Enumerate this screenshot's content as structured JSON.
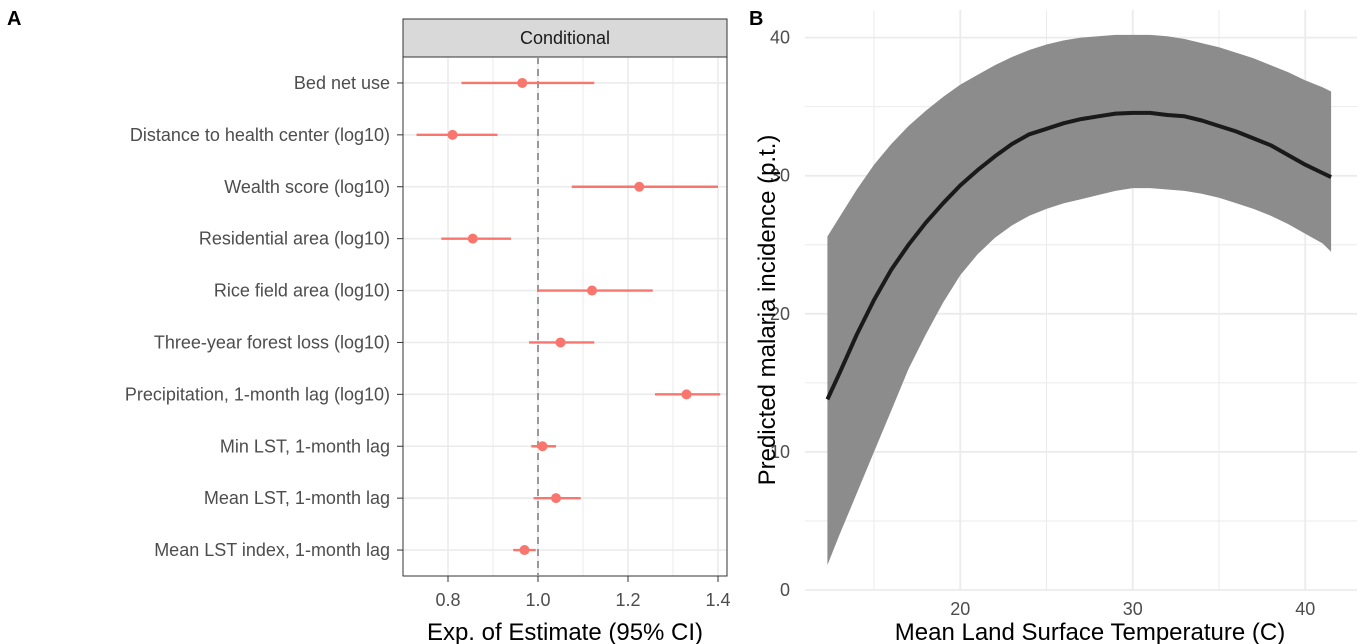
{
  "colors": {
    "point": "#f8766d",
    "ribbon": "#8c8c8c",
    "line": "#1a1a1a",
    "grid": "#ebebeb",
    "strip": "#d9d9d9",
    "refline": "#999999"
  },
  "chart_data": [
    {
      "panel": "A",
      "type": "scatter",
      "subtype": "forest-plot",
      "facet": "Conditional",
      "xlabel": "Exp. of Estimate (95% CI)",
      "ylabel": "",
      "xlim": [
        0.7,
        1.42
      ],
      "xticks": [
        0.8,
        1.0,
        1.2,
        1.4
      ],
      "xtick_labels": [
        "0.8",
        "1.0",
        "1.2",
        "1.4"
      ],
      "reference_line": 1.0,
      "grid": true,
      "rows": [
        {
          "label": "Bed net use",
          "est": 0.965,
          "lo": 0.83,
          "hi": 1.125
        },
        {
          "label": "Distance to health center (log10)",
          "est": 0.81,
          "lo": 0.73,
          "hi": 0.91
        },
        {
          "label": "Wealth score (log10)",
          "est": 1.225,
          "lo": 1.075,
          "hi": 1.4
        },
        {
          "label": "Residential area (log10)",
          "est": 0.855,
          "lo": 0.785,
          "hi": 0.94
        },
        {
          "label": "Rice field area (log10)",
          "est": 1.12,
          "lo": 1.0,
          "hi": 1.255
        },
        {
          "label": "Three-year forest loss (log10)",
          "est": 1.05,
          "lo": 0.98,
          "hi": 1.125
        },
        {
          "label": "Precipitation, 1-month lag (log10)",
          "est": 1.33,
          "lo": 1.26,
          "hi": 1.405
        },
        {
          "label": "Min LST, 1-month lag",
          "est": 1.01,
          "lo": 0.985,
          "hi": 1.04
        },
        {
          "label": "Mean LST, 1-month lag",
          "est": 1.04,
          "lo": 0.99,
          "hi": 1.095
        },
        {
          "label": "Mean LST index, 1-month lag",
          "est": 0.97,
          "lo": 0.945,
          "hi": 0.995
        }
      ]
    },
    {
      "panel": "B",
      "type": "line",
      "subtype": "line-with-ribbon",
      "xlabel": "Mean Land Surface Temperature (C)",
      "ylabel": "Predicted malaria incidence (p.t.)",
      "xlim": [
        11.0,
        43.0
      ],
      "ylim": [
        0,
        42
      ],
      "xticks": [
        20,
        30,
        40
      ],
      "yticks": [
        0,
        10,
        20,
        30,
        40
      ],
      "grid": true,
      "series": [
        {
          "x": [
            12.3,
            13,
            14,
            15,
            16,
            17,
            18,
            19,
            20,
            21,
            22,
            23,
            24,
            25,
            26,
            27,
            28,
            29,
            30,
            31,
            32,
            33,
            34,
            35,
            36,
            37,
            38,
            39,
            40,
            41,
            41.5
          ],
          "y": [
            13.8,
            15.7,
            18.5,
            21.0,
            23.2,
            25.0,
            26.6,
            28.0,
            29.3,
            30.4,
            31.4,
            32.3,
            33.0,
            33.4,
            33.8,
            34.1,
            34.3,
            34.5,
            34.55,
            34.55,
            34.4,
            34.3,
            34.0,
            33.6,
            33.2,
            32.7,
            32.2,
            31.5,
            30.8,
            30.2,
            29.9
          ],
          "lower": [
            1.8,
            4.0,
            7.0,
            10.0,
            13.0,
            16.0,
            18.5,
            20.8,
            22.8,
            24.3,
            25.5,
            26.4,
            27.1,
            27.6,
            28.0,
            28.3,
            28.6,
            28.9,
            29.1,
            29.1,
            29.0,
            28.9,
            28.7,
            28.4,
            28.0,
            27.6,
            27.1,
            26.5,
            25.8,
            25.1,
            24.5
          ],
          "upper": [
            25.6,
            27.0,
            29.0,
            30.8,
            32.3,
            33.6,
            34.7,
            35.7,
            36.6,
            37.3,
            38.0,
            38.6,
            39.1,
            39.5,
            39.8,
            40.0,
            40.1,
            40.2,
            40.2,
            40.2,
            40.1,
            39.9,
            39.6,
            39.3,
            38.9,
            38.5,
            38.0,
            37.5,
            36.9,
            36.4,
            36.1
          ]
        }
      ]
    }
  ]
}
